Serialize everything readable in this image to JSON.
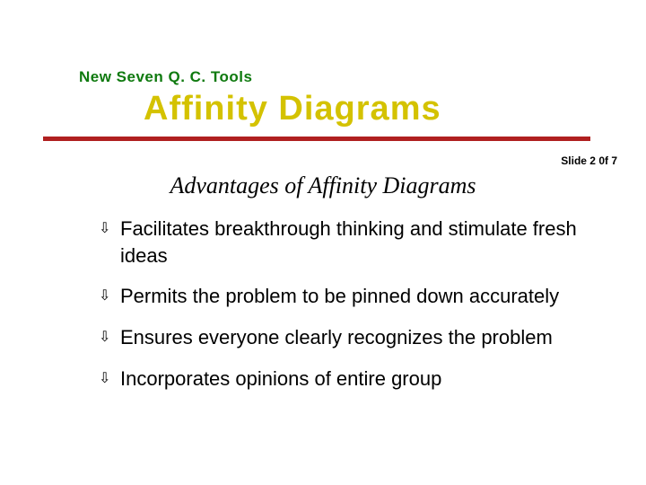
{
  "pretitle": {
    "text": "New Seven Q. C. Tools",
    "color": "#0f7a0f",
    "fontsize": 17
  },
  "title": {
    "text": "Affinity Diagrams",
    "color": "#d4c200",
    "fontsize": 38
  },
  "rule": {
    "color": "#b02020"
  },
  "slidecount": {
    "text": "Slide 2 0f 7",
    "fontsize": 12,
    "color": "#000000"
  },
  "subtitle": {
    "text": "Advantages of Affinity Diagrams",
    "fontsize": 26,
    "color": "#000000"
  },
  "bullets": {
    "marker": "⇩",
    "fontsize": 22,
    "color": "#000000",
    "items": [
      "Facilitates breakthrough thinking and stimulate fresh ideas",
      "Permits the problem to be pinned down accurately",
      "Ensures everyone clearly recognizes the problem",
      "Incorporates opinions of entire group"
    ]
  },
  "background_color": "#ffffff"
}
